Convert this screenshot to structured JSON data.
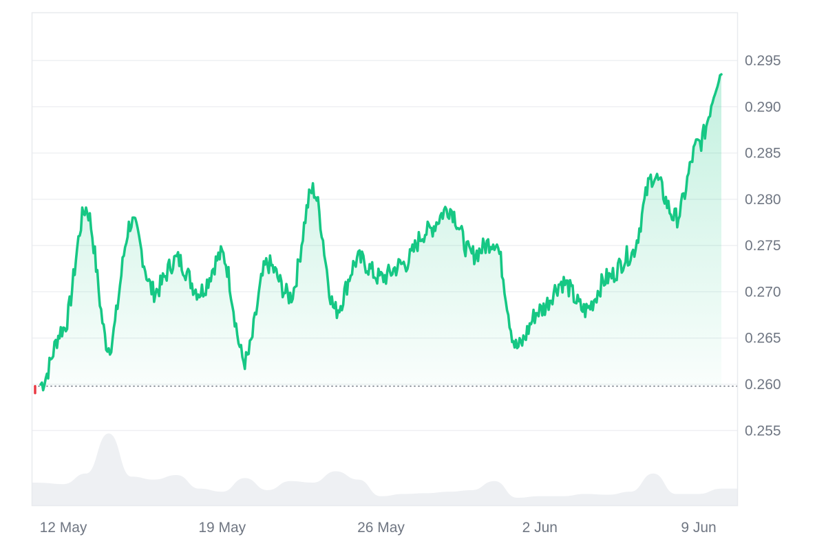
{
  "chart_data": {
    "type": "area",
    "y_axis": {
      "position": "right",
      "ticks": [
        0.255,
        0.26,
        0.265,
        0.27,
        0.275,
        0.28,
        0.285,
        0.29,
        0.295
      ],
      "tick_labels": [
        "0.255",
        "0.260",
        "0.265",
        "0.270",
        "0.275",
        "0.280",
        "0.285",
        "0.290",
        "0.295"
      ]
    },
    "x_axis": {
      "tick_labels": [
        "12 May",
        "19 May",
        "26 May",
        "2 Jun",
        "9 Jun"
      ]
    },
    "baseline": 0.2598,
    "colors": {
      "line": "#16c784",
      "fill": "#16c784",
      "below_baseline": "#ea3943",
      "volume": "#eef0f3",
      "grid": "#ebedf0"
    },
    "series": [
      {
        "x": [
          "2024-05-11",
          "2024-05-12",
          "2024-05-13",
          "2024-05-14",
          "2024-05-15",
          "2024-05-16",
          "2024-05-17",
          "2024-05-18",
          "2024-05-19",
          "2024-05-20",
          "2024-05-21",
          "2024-05-22",
          "2024-05-23",
          "2024-05-24",
          "2024-05-25",
          "2024-05-26",
          "2024-05-27",
          "2024-05-28",
          "2024-05-29",
          "2024-05-30",
          "2024-05-31",
          "2024-06-01",
          "2024-06-02",
          "2024-06-03",
          "2024-06-04",
          "2024-06-05",
          "2024-06-06",
          "2024-06-07",
          "2024-06-08",
          "2024-06-09",
          "2024-06-10"
        ],
        "values": [
          0.26,
          0.266,
          0.279,
          0.264,
          0.2775,
          0.27,
          0.2735,
          0.27,
          0.274,
          0.2625,
          0.273,
          0.2695,
          0.281,
          0.268,
          0.2735,
          0.2715,
          0.273,
          0.2765,
          0.279,
          0.274,
          0.2755,
          0.264,
          0.268,
          0.271,
          0.268,
          0.2715,
          0.274,
          0.2825,
          0.278,
          0.286,
          0.2935
        ]
      }
    ],
    "volume": [
      0.3,
      0.28,
      0.42,
      0.95,
      0.38,
      0.34,
      0.4,
      0.22,
      0.18,
      0.36,
      0.2,
      0.32,
      0.3,
      0.45,
      0.34,
      0.12,
      0.15,
      0.16,
      0.18,
      0.2,
      0.32,
      0.1,
      0.12,
      0.12,
      0.15,
      0.14,
      0.18,
      0.42,
      0.15,
      0.15,
      0.22
    ]
  }
}
